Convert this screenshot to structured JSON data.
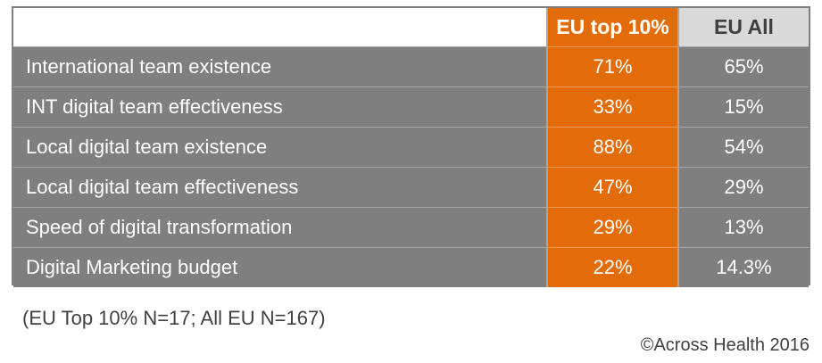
{
  "colors": {
    "highlight_column": "#e36c0a",
    "row_background": "#7f7f7f",
    "header_all_background": "#d9d9d9",
    "grid_lines": "#a6a6a6"
  },
  "chart_data": {
    "type": "table",
    "columns": [
      "",
      "EU top 10%",
      "EU All"
    ],
    "rows": [
      {
        "label": "International team existence",
        "top": "71%",
        "all": "65%"
      },
      {
        "label": "INT digital team effectiveness",
        "top": "33%",
        "all": "15%"
      },
      {
        "label": "Local digital team existence",
        "top": "88%",
        "all": "54%"
      },
      {
        "label": "Local digital team effectiveness",
        "top": "47%",
        "all": "29%"
      },
      {
        "label": "Speed of digital transformation",
        "top": "29%",
        "all": "13%"
      },
      {
        "label": "Digital Marketing budget",
        "top": "22%",
        "all": "14.3%"
      }
    ],
    "series": [
      {
        "name": "EU top 10%",
        "values": [
          71,
          33,
          88,
          47,
          29,
          22
        ]
      },
      {
        "name": "EU All",
        "values": [
          65,
          15,
          54,
          29,
          13,
          14.3
        ]
      }
    ]
  },
  "note": "(EU Top 10% N=17; All EU N=167)",
  "copyright": "©Across Health 2016"
}
